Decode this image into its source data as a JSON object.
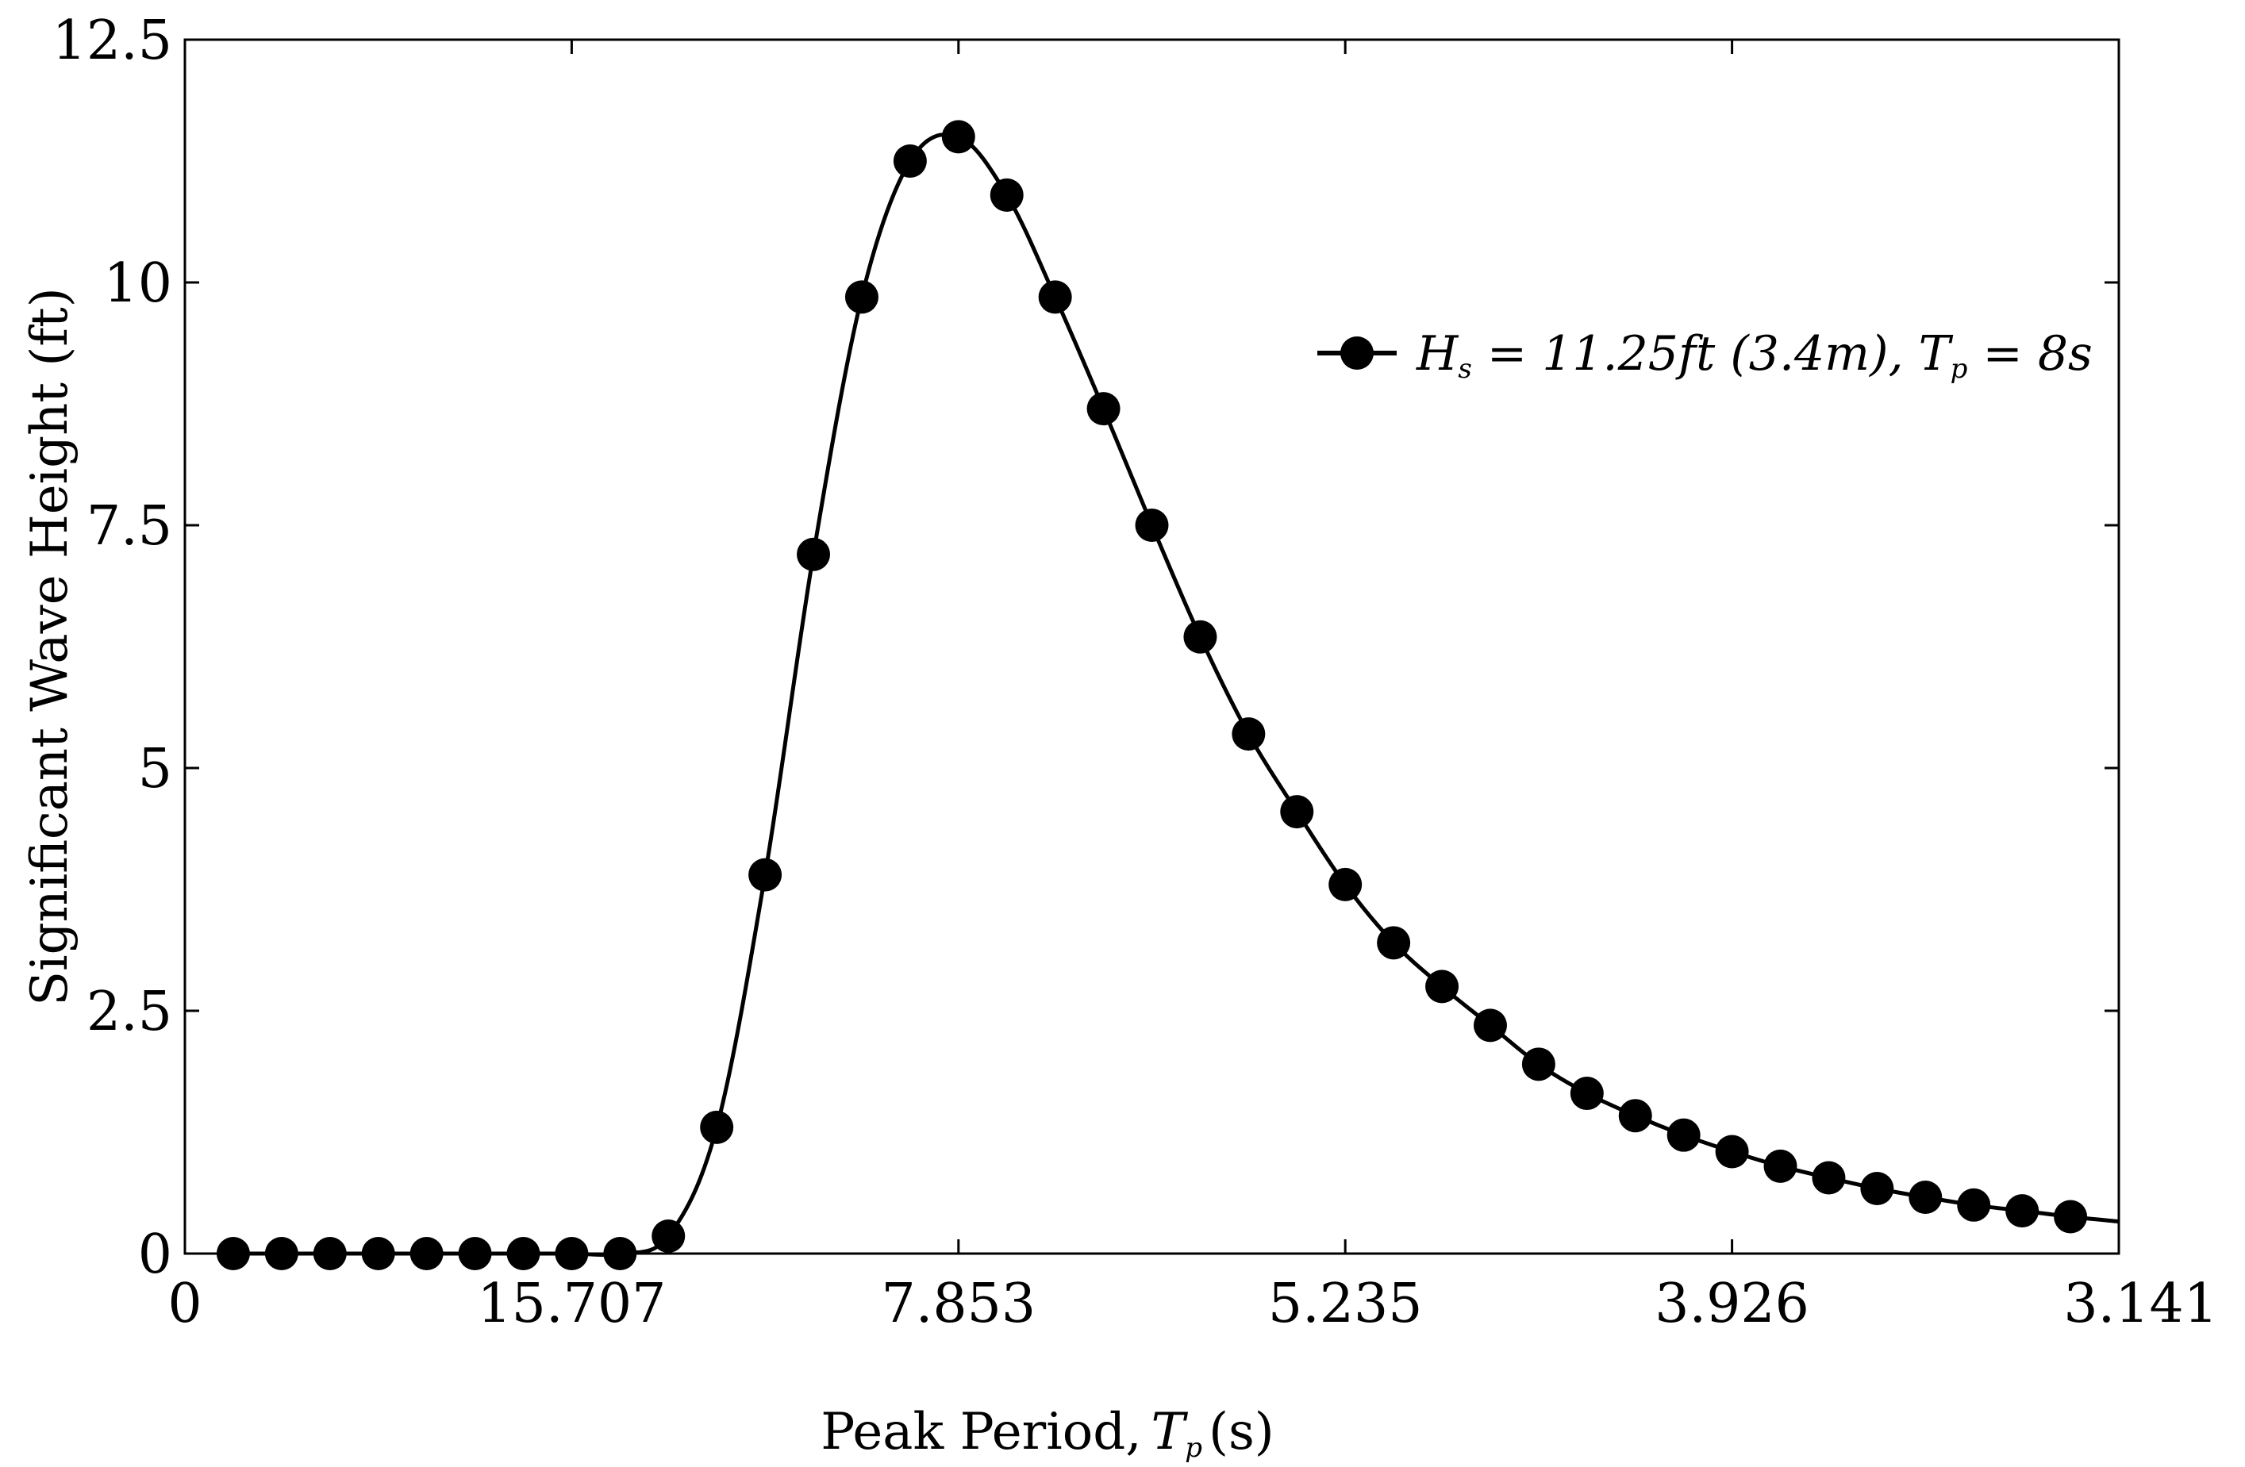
{
  "chart_data": {
    "type": "line",
    "title": "",
    "xlabel": "Peak Period,",
    "xlabel_symbol": "T",
    "xlabel_symbol_sub": "p",
    "xlabel_unit": "(s)",
    "ylabel": "Significant Wave Height (ft)",
    "xlim": [
      0,
      2.0
    ],
    "ylim": [
      0,
      12.5
    ],
    "x_ticks": [
      0,
      0.4,
      0.8,
      1.2,
      1.6,
      2.0
    ],
    "x_tick_labels": [
      "0",
      "15.707",
      "7.853",
      "5.235",
      "3.926",
      "3.141"
    ],
    "y_ticks": [
      0,
      2.5,
      5,
      7.5,
      10,
      12.5
    ],
    "y_tick_labels": [
      "0",
      "2.5",
      "5",
      "7.5",
      "10",
      "12.5"
    ],
    "grid": false,
    "legend_position": "top-right",
    "series": [
      {
        "name": "Hs = 11.25ft (3.4m), Tp = 8s",
        "legend": {
          "h_symbol": "H",
          "h_sub": "s",
          "middle": " = 11.25ft (3.4m), ",
          "t_symbol": "T",
          "t_sub": "p",
          "end": " = 8s"
        },
        "color": "#000000",
        "marker": "circle",
        "x": [
          0.05,
          0.1,
          0.15,
          0.2,
          0.25,
          0.3,
          0.35,
          0.4,
          0.45,
          0.5,
          0.55,
          0.6,
          0.65,
          0.7,
          0.75,
          0.8,
          0.85,
          0.9,
          0.95,
          1.0,
          1.05,
          1.1,
          1.15,
          1.2,
          1.25,
          1.3,
          1.35,
          1.4,
          1.45,
          1.5,
          1.55,
          1.6,
          1.65,
          1.7,
          1.75,
          1.8,
          1.85,
          1.9,
          1.95
        ],
        "values": [
          0,
          0,
          0,
          0,
          0,
          0,
          0,
          0,
          0,
          0.18,
          1.3,
          3.9,
          7.2,
          9.85,
          11.25,
          11.5,
          10.9,
          9.85,
          8.7,
          7.5,
          6.35,
          5.35,
          4.55,
          3.8,
          3.2,
          2.75,
          2.35,
          1.95,
          1.65,
          1.42,
          1.22,
          1.05,
          0.9,
          0.78,
          0.67,
          0.58,
          0.5,
          0.44,
          0.38
        ],
        "tail_x": 2.0,
        "tail_value": 0.33
      }
    ]
  }
}
